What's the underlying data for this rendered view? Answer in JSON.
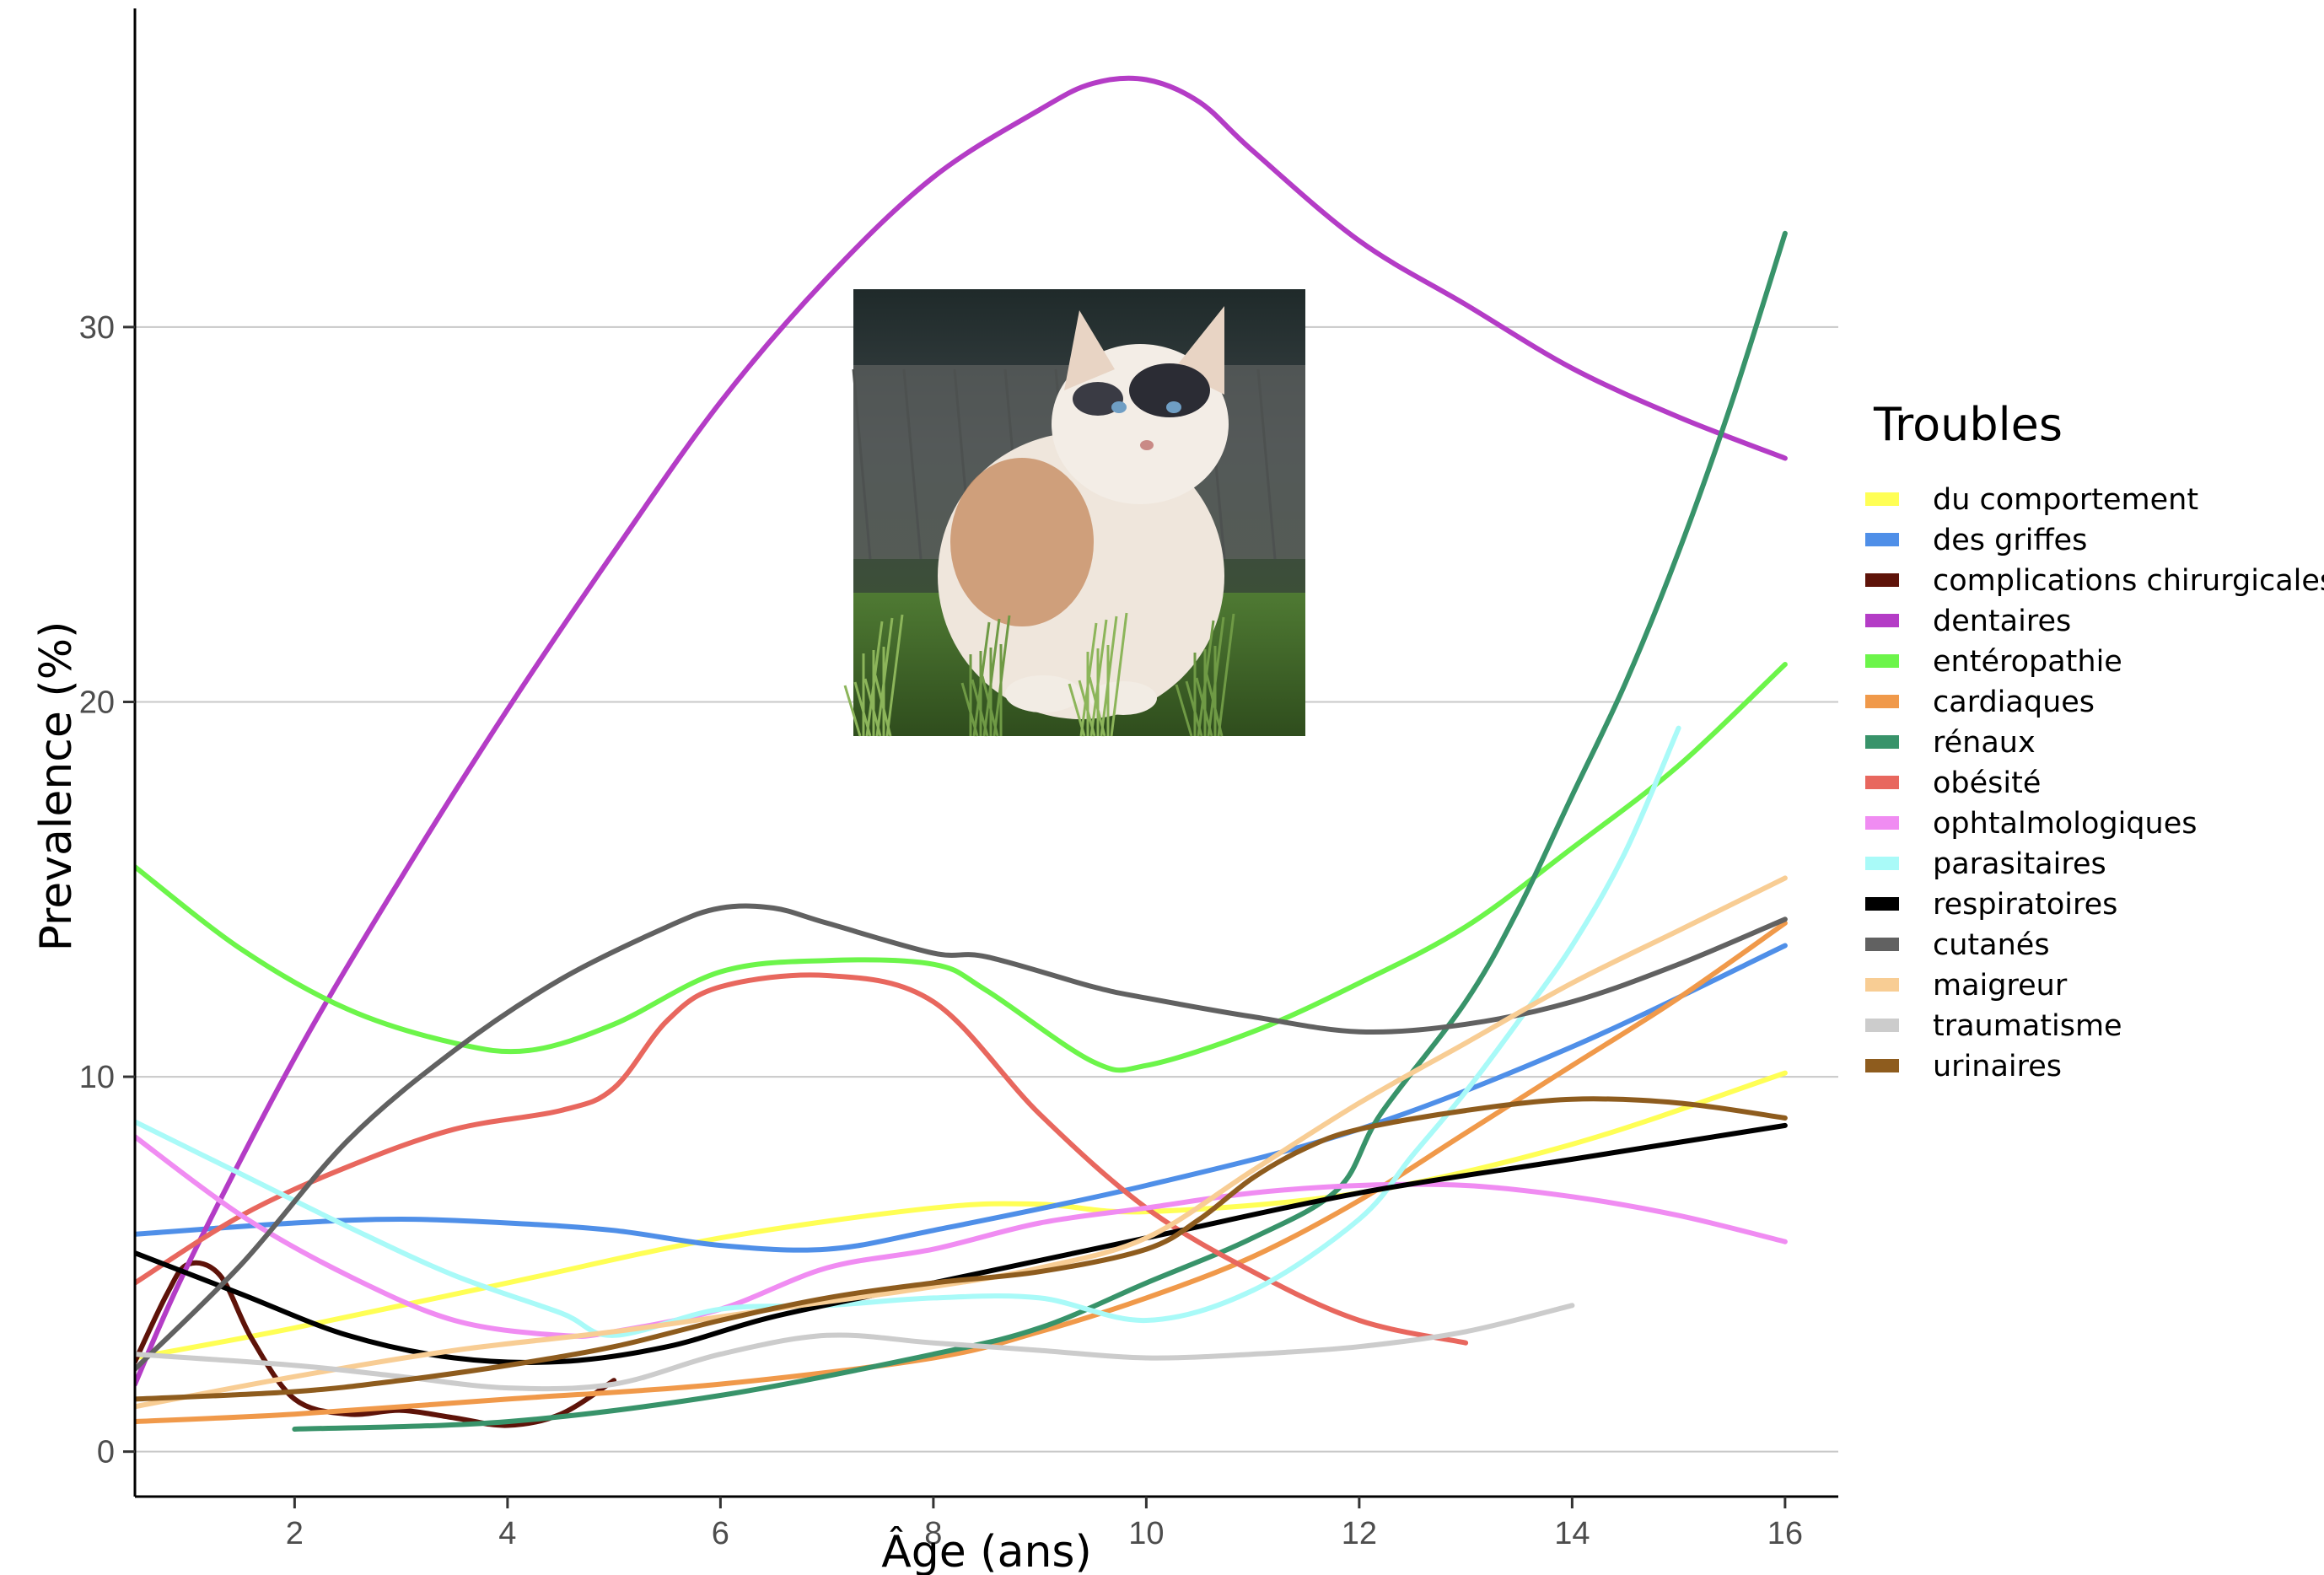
{
  "chart_data": {
    "type": "line",
    "title": "",
    "xlabel": "Âge (ans)",
    "ylabel": "Prevalence (%)",
    "xlim": [
      0.5,
      16.5
    ],
    "ylim": [
      -1.2,
      38.5
    ],
    "xticks": [
      2,
      4,
      6,
      8,
      10,
      12,
      14,
      16
    ],
    "yticks": [
      0,
      10,
      20,
      30
    ],
    "grid": "horizontal-major",
    "legend": {
      "title": "Troubles",
      "placement": "right"
    },
    "image": {
      "name": "cat-photo",
      "subject": "cat-photo"
    },
    "series": [
      {
        "name": "du comportement",
        "color": "#ffff55",
        "x": [
          0.5,
          2,
          4,
          6,
          8,
          9,
          10,
          12,
          14,
          16
        ],
        "y": [
          2.5,
          3.3,
          4.5,
          5.7,
          6.5,
          6.6,
          6.4,
          6.9,
          8.2,
          10.1
        ]
      },
      {
        "name": "des griffes",
        "color": "#4f8fe8",
        "x": [
          0.5,
          2,
          3,
          4,
          5,
          6,
          7,
          8,
          10,
          12,
          14,
          16
        ],
        "y": [
          5.8,
          6.1,
          6.2,
          6.1,
          5.9,
          5.5,
          5.4,
          5.9,
          7.1,
          8.6,
          10.8,
          13.5
        ]
      },
      {
        "name": "complications chirurgicales",
        "color": "#5e1309",
        "x": [
          0.5,
          0.8,
          1.0,
          1.3,
          1.6,
          2.0,
          2.5,
          3.0,
          3.5,
          4.0,
          4.5,
          5.0
        ],
        "y": [
          2.4,
          4.2,
          5.0,
          4.7,
          3.0,
          1.4,
          1.0,
          1.1,
          0.9,
          0.7,
          1.0,
          1.9
        ]
      },
      {
        "name": "dentaires",
        "color": "#b43cc6",
        "x": [
          0.5,
          1,
          2,
          3,
          4,
          5,
          6,
          7,
          8,
          9,
          9.5,
          10,
          10.5,
          11,
          12,
          13,
          14,
          15,
          16
        ],
        "y": [
          1.8,
          5.0,
          10.5,
          15.3,
          19.8,
          24.0,
          28.0,
          31.3,
          34.0,
          35.8,
          36.5,
          36.6,
          36.0,
          34.7,
          32.3,
          30.6,
          28.9,
          27.6,
          26.5
        ]
      },
      {
        "name": "entéropathie",
        "color": "#6cf54a",
        "x": [
          0.5,
          1.5,
          2.5,
          3.5,
          4.2,
          5,
          6,
          7,
          8,
          8.5,
          9.5,
          10,
          11,
          12,
          13,
          14,
          15,
          16
        ],
        "y": [
          15.6,
          13.4,
          11.8,
          10.9,
          10.7,
          11.4,
          12.8,
          13.1,
          13.0,
          12.3,
          10.4,
          10.3,
          11.2,
          12.5,
          14.0,
          16.1,
          18.3,
          21.0
        ]
      },
      {
        "name": "cardiaques",
        "color": "#f0994a",
        "x": [
          0.5,
          2,
          4,
          6,
          8,
          9,
          10,
          11,
          12,
          13,
          14,
          15,
          16
        ],
        "y": [
          0.8,
          1.0,
          1.4,
          1.8,
          2.5,
          3.2,
          4.1,
          5.2,
          6.7,
          8.5,
          10.3,
          12.1,
          14.1
        ]
      },
      {
        "name": "rénaux",
        "color": "#38936a",
        "x": [
          2,
          4,
          6,
          8,
          9,
          10,
          11,
          11.8,
          12.2,
          13,
          13.5,
          14,
          14.5,
          15,
          15.5,
          16
        ],
        "y": [
          0.6,
          0.8,
          1.5,
          2.6,
          3.3,
          4.5,
          5.7,
          7.0,
          9.0,
          12.0,
          14.5,
          17.5,
          20.5,
          24.0,
          28.0,
          32.5
        ]
      },
      {
        "name": "obésité",
        "color": "#e8675e",
        "x": [
          0.5,
          1.5,
          2.5,
          3.5,
          4.5,
          5,
          5.5,
          6,
          7,
          8,
          9,
          10,
          11,
          12,
          13
        ],
        "y": [
          4.5,
          6.3,
          7.6,
          8.6,
          9.1,
          9.7,
          11.5,
          12.4,
          12.7,
          12.0,
          9.0,
          6.5,
          4.8,
          3.5,
          2.9
        ]
      },
      {
        "name": "ophtalmologiques",
        "color": "#f08cf2",
        "x": [
          0.5,
          1.5,
          2.5,
          3.5,
          4.5,
          5,
          6,
          7,
          8,
          9,
          10,
          11,
          12,
          13,
          14,
          15,
          16
        ],
        "y": [
          8.4,
          6.3,
          4.7,
          3.5,
          3.1,
          3.2,
          3.8,
          4.9,
          5.4,
          6.1,
          6.5,
          6.9,
          7.1,
          7.1,
          6.8,
          6.3,
          5.6
        ]
      },
      {
        "name": "parasitaires",
        "color": "#a9faf8",
        "x": [
          0.5,
          1.5,
          2.5,
          3.5,
          4.5,
          5,
          6,
          7,
          8,
          9,
          10,
          11,
          12,
          12.5,
          13,
          13.5,
          14,
          14.5,
          15
        ],
        "y": [
          8.8,
          7.4,
          6.0,
          4.7,
          3.7,
          3.1,
          3.8,
          3.9,
          4.1,
          4.1,
          3.5,
          4.3,
          6.2,
          7.9,
          9.6,
          11.5,
          13.5,
          16.0,
          19.3
        ]
      },
      {
        "name": "respiratoires",
        "color": "#000000",
        "x": [
          0.5,
          1.5,
          2.5,
          3.5,
          4.5,
          5.5,
          6.5,
          8,
          10,
          12,
          14,
          16
        ],
        "y": [
          5.3,
          4.2,
          3.1,
          2.5,
          2.4,
          2.8,
          3.6,
          4.5,
          5.7,
          6.9,
          7.8,
          8.7
        ]
      },
      {
        "name": "cutanés",
        "color": "#616161",
        "x": [
          0.5,
          1.5,
          2.5,
          3.5,
          4.5,
          5.5,
          6,
          6.5,
          7,
          8,
          8.5,
          9.5,
          10,
          11,
          12,
          13,
          14,
          15,
          16
        ],
        "y": [
          2.2,
          5.0,
          8.3,
          10.7,
          12.6,
          14.0,
          14.5,
          14.5,
          14.1,
          13.3,
          13.2,
          12.4,
          12.1,
          11.6,
          11.2,
          11.4,
          12.0,
          13.0,
          14.2
        ]
      },
      {
        "name": "maigreur",
        "color": "#f8cd94",
        "x": [
          0.5,
          2,
          3.5,
          5,
          6.5,
          8,
          9,
          10,
          11,
          12,
          13,
          14,
          15,
          16
        ],
        "y": [
          1.2,
          2.0,
          2.7,
          3.2,
          3.8,
          4.4,
          4.9,
          5.7,
          7.5,
          9.3,
          10.9,
          12.5,
          13.9,
          15.3
        ]
      },
      {
        "name": "traumatisme",
        "color": "#cccccc",
        "x": [
          0.5,
          2,
          3,
          4,
          5,
          6,
          7,
          8,
          9,
          10,
          11,
          12,
          13,
          14
        ],
        "y": [
          2.6,
          2.3,
          2.0,
          1.7,
          1.8,
          2.6,
          3.1,
          2.9,
          2.7,
          2.5,
          2.6,
          2.8,
          3.2,
          3.9
        ]
      },
      {
        "name": "urinaires",
        "color": "#8e5c1e",
        "x": [
          0.5,
          2,
          3,
          4,
          5,
          6,
          7,
          8,
          9,
          10,
          10.5,
          11,
          11.5,
          12,
          13,
          14,
          15,
          16
        ],
        "y": [
          1.4,
          1.6,
          1.9,
          2.3,
          2.8,
          3.5,
          4.1,
          4.5,
          4.8,
          5.4,
          6.2,
          7.3,
          8.1,
          8.6,
          9.1,
          9.4,
          9.3,
          8.9
        ]
      }
    ]
  }
}
